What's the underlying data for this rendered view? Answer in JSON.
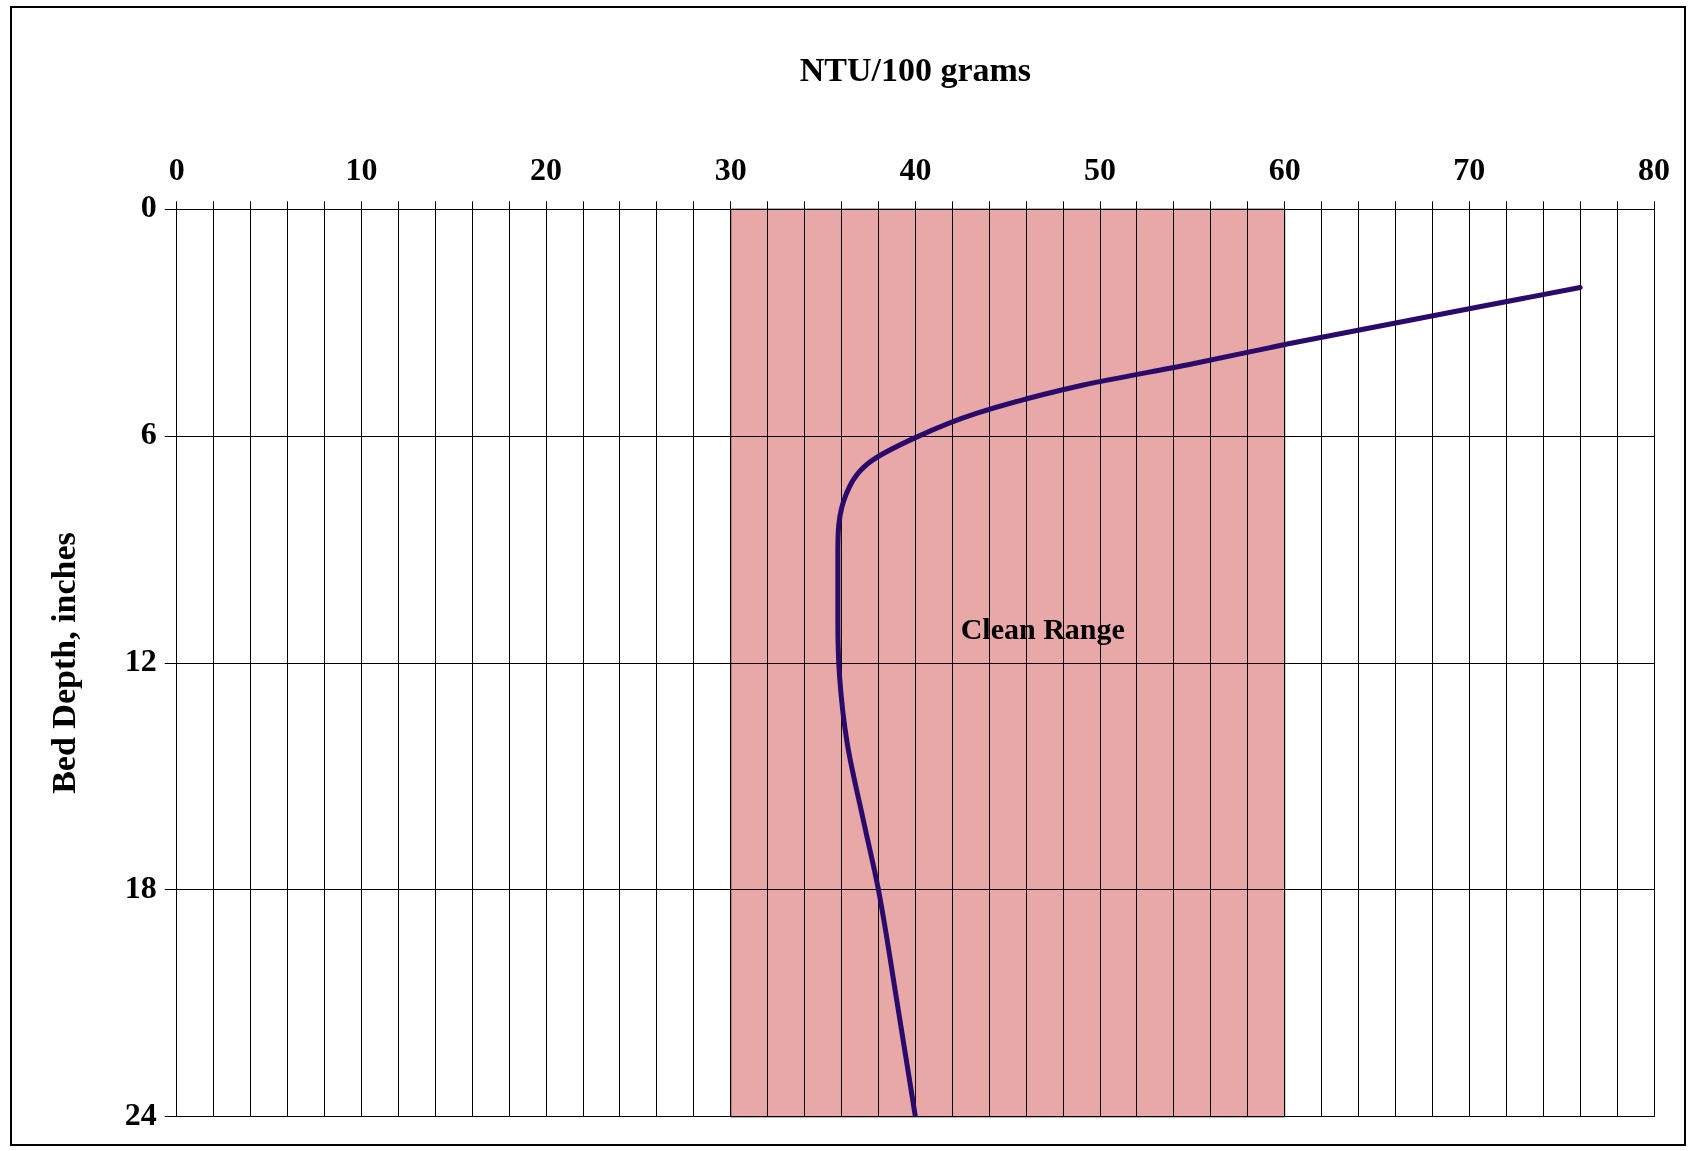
{
  "chart_data": {
    "type": "line",
    "xlabel": "NTU/100 grams",
    "ylabel": "Bed Depth, inches",
    "xlim": [
      0,
      80
    ],
    "ylim": [
      24,
      0
    ],
    "xticks": [
      0,
      {
        "value": 2,
        "label": null
      },
      {
        "value": 4,
        "label": null
      },
      {
        "value": 6,
        "label": null
      },
      {
        "value": 8,
        "label": null
      },
      10,
      {
        "value": 12,
        "label": null
      },
      {
        "value": 14,
        "label": null
      },
      {
        "value": 16,
        "label": null
      },
      {
        "value": 18,
        "label": null
      },
      20,
      {
        "value": 22,
        "label": null
      },
      {
        "value": 24,
        "label": null
      },
      {
        "value": 26,
        "label": null
      },
      {
        "value": 28,
        "label": null
      },
      30,
      {
        "value": 32,
        "label": null
      },
      {
        "value": 34,
        "label": null
      },
      {
        "value": 36,
        "label": null
      },
      {
        "value": 38,
        "label": null
      },
      40,
      {
        "value": 42,
        "label": null
      },
      {
        "value": 44,
        "label": null
      },
      {
        "value": 46,
        "label": null
      },
      {
        "value": 48,
        "label": null
      },
      50,
      {
        "value": 52,
        "label": null
      },
      {
        "value": 54,
        "label": null
      },
      {
        "value": 56,
        "label": null
      },
      {
        "value": 58,
        "label": null
      },
      60,
      {
        "value": 62,
        "label": null
      },
      {
        "value": 64,
        "label": null
      },
      {
        "value": 66,
        "label": null
      },
      {
        "value": 68,
        "label": null
      },
      70,
      {
        "value": 72,
        "label": null
      },
      {
        "value": 74,
        "label": null
      },
      {
        "value": 76,
        "label": null
      },
      {
        "value": 78,
        "label": null
      },
      80
    ],
    "yticks": [
      0,
      6,
      12,
      18,
      24
    ],
    "grid": true,
    "legend": false,
    "marker": "none",
    "line_style": "solid",
    "bands": [
      {
        "axis": "x",
        "from": 30,
        "to": 60,
        "label": "Clean Range",
        "color": "#e8a8a8"
      }
    ],
    "series": [
      {
        "color": "#2a0a6a",
        "x": [
          76.0,
          60.2,
          54.9,
          49.1,
          43.3,
          40.0,
          37.5,
          36.2,
          35.8,
          35.8,
          35.9,
          36.3,
          37.2,
          38.0,
          39.0,
          40.0
        ],
        "values": [
          2.07,
          3.56,
          4.1,
          4.65,
          5.4,
          6.04,
          6.7,
          7.6,
          9.1,
          10.9,
          12.4,
          14.1,
          16.2,
          18.0,
          20.95,
          24.0
        ]
      }
    ]
  }
}
